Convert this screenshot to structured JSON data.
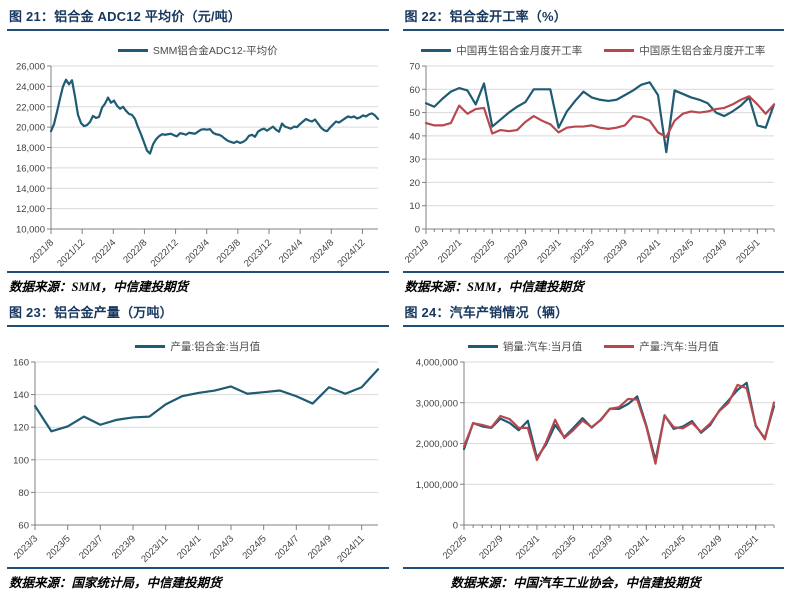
{
  "colors": {
    "title_navy": "#17375E",
    "rule_navy": "#1F4E79",
    "line_blue": "#1F5B73",
    "line_red": "#B8474E",
    "grid_gray": "#D9D9D9",
    "axis_gray": "#808080",
    "tick_text_gray": "#404040"
  },
  "panels": [
    {
      "title": "图 21：铝合金 ADC12 平均价（元/吨）",
      "source": "数据来源：SMM，中信建投期货"
    },
    {
      "title": "图 22：铝合金开工率（%）",
      "source": "数据来源：SMM，中信建投期货"
    },
    {
      "title": "图 23：铝合金产量（万吨）",
      "source": "数据来源：国家统计局，中信建投期货"
    },
    {
      "title": "图 24：汽车产销情况（辆）",
      "source": "数据来源：中国汽车工业协会，中信建投期货"
    }
  ],
  "chart_data": [
    {
      "type": "line",
      "title": "铝合金 ADC12 平均价（元/吨）",
      "x_start": "2021/8",
      "x_end": "2025/2",
      "x_total_months": 42,
      "x_tick_labels": [
        "2021/8",
        "2021/12",
        "2022/4",
        "2022/8",
        "2022/12",
        "2023/4",
        "2023/8",
        "2023/12",
        "2024/4",
        "2024/8",
        "2024/12"
      ],
      "x_tick_months": [
        0,
        4,
        8,
        12,
        16,
        20,
        24,
        28,
        32,
        36,
        40
      ],
      "minor_ticks_monthly": false,
      "grid": true,
      "ylim": [
        10000,
        26000
      ],
      "ytick_step": 2000,
      "y_format": "thousands",
      "legend_position": "top",
      "series": [
        {
          "name": "SMM铝合金ADC12-平均价",
          "color": "#1F5B73",
          "values": [
            19600,
            20300,
            21500,
            22800,
            24000,
            24650,
            24200,
            24600,
            23000,
            21200,
            20400,
            20100,
            20200,
            20500,
            21100,
            20900,
            21000,
            21900,
            22300,
            22900,
            22400,
            22600,
            22100,
            21800,
            22000,
            21600,
            21300,
            21200,
            20800,
            20000,
            19300,
            18500,
            17700,
            17400,
            18300,
            18800,
            19100,
            19300,
            19250,
            19300,
            19350,
            19200,
            19100,
            19400,
            19350,
            19250,
            19450,
            19400,
            19350,
            19550,
            19750,
            19800,
            19750,
            19800,
            19450,
            19300,
            19250,
            19100,
            18850,
            18650,
            18550,
            18450,
            18600,
            18450,
            18550,
            18750,
            19150,
            19250,
            19050,
            19550,
            19750,
            19850,
            19650,
            19850,
            20050,
            19750,
            19550,
            20350,
            20050,
            19950,
            19850,
            20050,
            20000,
            20300,
            20550,
            20800,
            20650,
            20550,
            20750,
            20350,
            19950,
            19700,
            19600,
            19950,
            20250,
            20550,
            20450,
            20650,
            20850,
            21050,
            20950,
            21050,
            20850,
            20950,
            21150,
            21050,
            21250,
            21350,
            21150,
            20800
          ]
        }
      ]
    },
    {
      "type": "line",
      "title": "铝合金开工率（%）",
      "x_start": "2021/9",
      "x_end": "2025/3",
      "x_total_months": 42,
      "x_tick_labels": [
        "2021/9",
        "2022/1",
        "2022/5",
        "2022/9",
        "2023/1",
        "2023/5",
        "2023/9",
        "2024/1",
        "2024/5",
        "2024/9",
        "2025/1"
      ],
      "x_tick_months": [
        0,
        4,
        8,
        12,
        16,
        20,
        24,
        28,
        32,
        36,
        40
      ],
      "minor_ticks_monthly": true,
      "grid": true,
      "ylim": [
        0,
        70
      ],
      "ytick_step": 10,
      "y_format": "plain",
      "legend_position": "top",
      "series": [
        {
          "name": "中国再生铝合金月度开工率",
          "color": "#1F5B73",
          "values": [
            54,
            52.5,
            56,
            59,
            60.5,
            59.5,
            53.5,
            62.5,
            44,
            47,
            50,
            52.5,
            54.5,
            60,
            60,
            60,
            43.5,
            50.5,
            55,
            59,
            56.5,
            55.5,
            55,
            55.5,
            57.5,
            59.5,
            62,
            63,
            57.5,
            33,
            59.5,
            58,
            56.5,
            55.5,
            54,
            50,
            48.5,
            50.5,
            53,
            56.5,
            44.5,
            43.5,
            53.5
          ]
        },
        {
          "name": "中国原生铝合金月度开工率",
          "color": "#B8474E",
          "values": [
            45.5,
            44.5,
            44.5,
            45.5,
            53,
            49.5,
            51.5,
            52,
            41,
            42.5,
            42,
            42.5,
            46,
            48.5,
            46.5,
            45,
            41.5,
            43.5,
            44,
            44,
            44.5,
            43.5,
            43,
            43.5,
            44.5,
            48.5,
            48,
            46.5,
            41.5,
            39.5,
            46.5,
            49.5,
            50.5,
            50,
            50.5,
            51.5,
            52,
            53.5,
            55.5,
            57,
            53.5,
            49.5,
            53.5
          ]
        }
      ]
    },
    {
      "type": "line",
      "title": "铝合金产量（万吨）",
      "x_start": "2023/3",
      "x_end": "2024/12",
      "x_total_months": 21,
      "x_tick_labels": [
        "2023/3",
        "2023/5",
        "2023/7",
        "2023/9",
        "2023/11",
        "2024/1",
        "2024/3",
        "2024/5",
        "2024/7",
        "2024/9",
        "2024/11"
      ],
      "x_tick_months": [
        0,
        2,
        4,
        6,
        8,
        10,
        12,
        14,
        16,
        18,
        20
      ],
      "minor_ticks_monthly": false,
      "grid": true,
      "ylim": [
        60,
        160
      ],
      "ytick_step": 20,
      "y_format": "plain",
      "legend_position": "top",
      "series": [
        {
          "name": "产量:铝合金:当月值",
          "color": "#1F5B73",
          "values": [
            133,
            117.5,
            120.5,
            126.5,
            121.5,
            124.5,
            126,
            126.5,
            134,
            139,
            141,
            142.5,
            145,
            140.5,
            141.5,
            142.5,
            139,
            134.5,
            144.5,
            140.5,
            144.5,
            155.5
          ]
        }
      ]
    },
    {
      "type": "line",
      "title": "汽车产销情况（辆）",
      "x_start": "2022/5",
      "x_end": "2025/3",
      "x_total_months": 34,
      "x_tick_labels": [
        "2022/5",
        "2022/9",
        "2023/1",
        "2023/5",
        "2023/9",
        "2024/1",
        "2024/5",
        "2024/9",
        "2025/1"
      ],
      "x_tick_months": [
        0,
        4,
        8,
        12,
        16,
        20,
        24,
        28,
        32
      ],
      "minor_ticks_monthly": true,
      "grid": true,
      "ylim": [
        0,
        4000000
      ],
      "ytick_step": 1000000,
      "y_format": "thousands",
      "legend_position": "top",
      "series": [
        {
          "name": "销量:汽车:当月值",
          "color": "#1F5B73",
          "values": [
            1862000,
            2502000,
            2420000,
            2383000,
            2610000,
            2505000,
            2326000,
            2556000,
            1649000,
            1976000,
            2452000,
            2159000,
            2382000,
            2622000,
            2389000,
            2584000,
            2854000,
            2850000,
            2970000,
            3156000,
            2439000,
            1585000,
            2694000,
            2359000,
            2417000,
            2552000,
            2262000,
            2452000,
            2809000,
            3053000,
            3316000,
            3489000,
            2426000,
            2129000,
            2915000
          ]
        },
        {
          "name": "产量:汽车:当月值",
          "color": "#B8474E",
          "values": [
            1927000,
            2499000,
            2455000,
            2395000,
            2675000,
            2599000,
            2383000,
            2383000,
            1594000,
            2032000,
            2581000,
            2134000,
            2331000,
            2561000,
            2401000,
            2573000,
            2851000,
            2891000,
            3093000,
            3078000,
            2411000,
            1506000,
            2687000,
            2401000,
            2372000,
            2507000,
            2286000,
            2491000,
            2796000,
            2996000,
            3437000,
            3359000,
            2446000,
            2103000,
            3006000
          ]
        }
      ]
    }
  ]
}
